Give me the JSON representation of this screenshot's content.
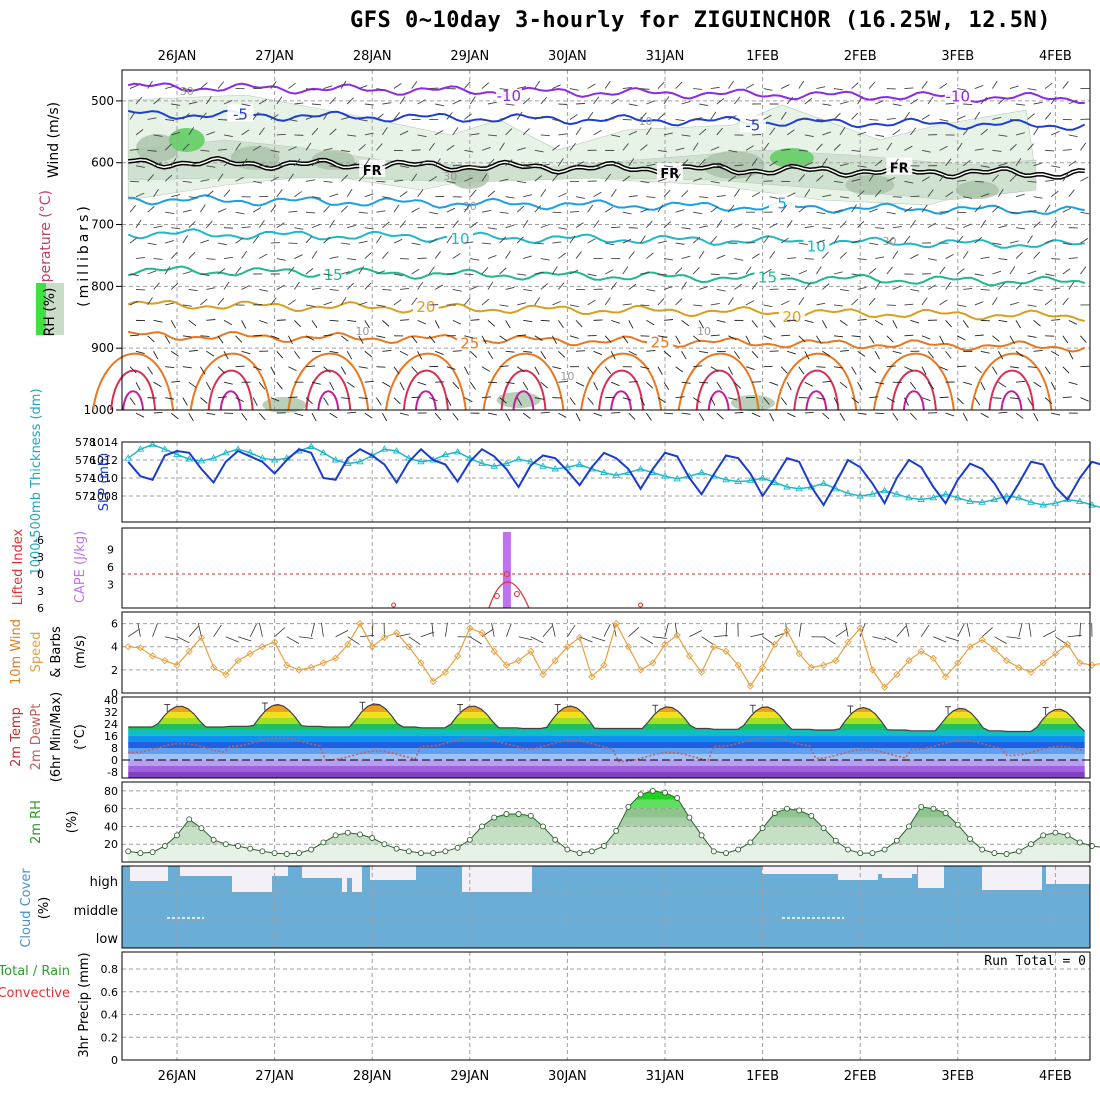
{
  "page": {
    "title": "GFS 0~10day 3-hourly for ZIGUINCHOR (16.25W, 12.5N)"
  },
  "colors": {
    "frame": "#000000",
    "grid": "#a0a0a0",
    "slp": "#1a3ccc",
    "thickness": "#20b8c8",
    "wind10m": "#e8a040",
    "barb": "#333333",
    "rh2m": "#2a9a2a",
    "cloud": "#6aadd6",
    "cape": "#c070f0",
    "lifted": "#e03030"
  },
  "chart_data": [
    {
      "type": "line",
      "panel": "profile",
      "ylabels": [
        "Wind (m/s)",
        "Temperature (°C)",
        "RH (%)",
        "(millibars)"
      ],
      "yticks": [
        500,
        600,
        700,
        800,
        900,
        1000
      ],
      "ylim": [
        450,
        1000
      ],
      "xlabels_top": [
        "26JAN",
        "27JAN",
        "28JAN",
        "29JAN",
        "30JAN",
        "31JAN",
        "1FEB",
        "2FEB",
        "3FEB",
        "4FEB"
      ],
      "xlabels_bottom": [
        "26JAN",
        "27JAN",
        "28JAN",
        "29JAN",
        "30JAN",
        "31JAN",
        "1FEB",
        "2FEB",
        "3FEB",
        "4FEB"
      ],
      "isotherms": [
        {
          "label": "-10",
          "level": 478,
          "color": "#8a2be2",
          "label_positions": [
            [
              3.9,
              "-10"
            ],
            [
              8.5,
              "-10"
            ]
          ]
        },
        {
          "label": "-5",
          "level": 522,
          "color": "#1f3fd0",
          "label_positions": [
            [
              1.15,
              "-5"
            ],
            [
              6.4,
              "-5"
            ]
          ]
        },
        {
          "label": "FR",
          "level": 600,
          "color": "#000000",
          "label_positions": [
            [
              2.5,
              "FR"
            ],
            [
              5.55,
              "FR"
            ],
            [
              7.9,
              "FR"
            ]
          ]
        },
        {
          "label": "5",
          "level": 660,
          "color": "#1ea0e0",
          "label_positions": [
            [
              6.7,
              "5"
            ]
          ]
        },
        {
          "label": "10",
          "level": 715,
          "color": "#20b8c8",
          "label_positions": [
            [
              3.4,
              "10"
            ],
            [
              7.05,
              "10"
            ]
          ]
        },
        {
          "label": "15",
          "level": 775,
          "color": "#20b890",
          "label_positions": [
            [
              2.1,
              "15"
            ],
            [
              6.55,
              "15"
            ]
          ]
        },
        {
          "label": "20",
          "level": 830,
          "color": "#d8a020",
          "label_positions": [
            [
              3.05,
              "20"
            ],
            [
              6.8,
              "20"
            ]
          ]
        },
        {
          "label": "25",
          "level": 880,
          "color": "#e87820",
          "label_positions": [
            [
              3.5,
              "25"
            ],
            [
              5.45,
              "25"
            ]
          ]
        }
      ],
      "rh_contour_labels": [
        "30",
        "10",
        "30",
        "30",
        "10",
        "10",
        "30",
        "10"
      ]
    },
    {
      "type": "line",
      "panel": "slp_thickness",
      "ylabel_left": "1000-500mb Thickness (dm)",
      "ylabel_right": "SLP (mb)",
      "left_ticks": [
        578,
        576,
        574,
        572
      ],
      "right_ticks": [
        1014,
        1012,
        1010,
        1008
      ],
      "slp_values": [
        1011.8,
        1010.2,
        1009.8,
        1012.5,
        1013.0,
        1012.8,
        1011.0,
        1009.5,
        1011.8,
        1013.0,
        1012.4,
        1011.8,
        1010.5,
        1012.0,
        1013.2,
        1012.8,
        1010.0,
        1009.8,
        1012.2,
        1013.2,
        1012.5,
        1011.5,
        1009.5,
        1011.8,
        1013.2,
        1012.0,
        1011.5,
        1009.6,
        1011.8,
        1013.2,
        1012.4,
        1011.0,
        1009.0,
        1011.4,
        1012.5,
        1012.2,
        1010.8,
        1009.2,
        1011.2,
        1012.8,
        1012.2,
        1011.0,
        1008.8,
        1011.0,
        1012.8,
        1012.4,
        1010.0,
        1008.2,
        1010.4,
        1012.5,
        1012.2,
        1010.5,
        1008.0,
        1010.0,
        1012.2,
        1011.8,
        1009.0,
        1007.0,
        1009.4,
        1012.0,
        1011.2,
        1009.4,
        1007.2,
        1010.0,
        1012.0,
        1011.2,
        1009.0,
        1007.2,
        1009.8,
        1011.6,
        1011.0,
        1009.4,
        1007.2,
        1009.4,
        1011.8,
        1011.5,
        1009.0,
        1007.6,
        1010.0,
        1011.8,
        1011.4
      ],
      "thickness_values": [
        576.2,
        577.2,
        577.7,
        577.2,
        576.6,
        576.1,
        575.9,
        576.2,
        576.8,
        577.2,
        576.8,
        576.2,
        576.0,
        576.2,
        577.0,
        577.5,
        576.8,
        576.0,
        575.6,
        575.8,
        576.5,
        577.2,
        577.0,
        576.2,
        575.8,
        576.0,
        576.6,
        576.9,
        576.2,
        575.6,
        575.3,
        575.6,
        576.1,
        575.8,
        575.3,
        575.0,
        575.2,
        575.5,
        575.0,
        574.6,
        574.3,
        574.6,
        575.0,
        574.6,
        574.2,
        573.9,
        574.2,
        574.6,
        574.2,
        573.8,
        573.6,
        573.7,
        574.0,
        573.5,
        573.0,
        572.8,
        573.0,
        573.4,
        572.8,
        572.3,
        572.0,
        572.2,
        572.6,
        572.2,
        571.8,
        571.6,
        571.8,
        572.2,
        571.8,
        571.4,
        571.3,
        571.6,
        572.0,
        571.8,
        571.3,
        571.0,
        571.2,
        571.6,
        571.4,
        571.0,
        570.6
      ]
    },
    {
      "type": "bar",
      "panel": "cape_lifted",
      "ylabel_left": "Lifted Index",
      "ylabel_right": "CAPE (J/kg)",
      "left_ticks": [
        "-6",
        "-3",
        "0",
        "3",
        "6"
      ],
      "right_ticks": [
        "9",
        "6",
        "3"
      ],
      "cape_bar": {
        "day": 3.88,
        "value": 12
      },
      "lifted_index_reference": 0
    },
    {
      "type": "line",
      "panel": "wind10m",
      "ylabel": "10m Wind Speed & Barbs (m/s)",
      "yticks": [
        0,
        2,
        4,
        6
      ],
      "ylim": [
        0,
        7
      ],
      "values": [
        4.0,
        3.9,
        3.2,
        2.8,
        2.4,
        3.6,
        4.8,
        2.2,
        1.6,
        2.8,
        3.4,
        4.0,
        4.4,
        2.4,
        2.0,
        2.2,
        2.6,
        3.0,
        4.2,
        6.0,
        4.0,
        4.8,
        5.2,
        4.0,
        2.6,
        1.0,
        1.8,
        3.2,
        5.6,
        5.2,
        3.6,
        2.4,
        2.8,
        3.6,
        1.6,
        2.8,
        4.0,
        4.8,
        1.4,
        2.4,
        6.0,
        4.0,
        2.0,
        2.6,
        4.2,
        5.0,
        3.2,
        1.8,
        4.0,
        3.6,
        2.4,
        0.6,
        2.2,
        4.2,
        5.4,
        3.4,
        2.2,
        2.4,
        2.8,
        4.4,
        5.6,
        2.0,
        0.5,
        1.6,
        2.8,
        3.6,
        3.0,
        1.4,
        2.6,
        4.0,
        4.6,
        3.8,
        2.8,
        2.2,
        1.8,
        2.6,
        3.4,
        4.2,
        2.6,
        2.4,
        2.6
      ]
    },
    {
      "type": "line",
      "panel": "temp_dewpt",
      "ylabel": "2m Temp 2m DewPt (6hr Min/Max) (°C)",
      "yticks": [
        40,
        32,
        24,
        16,
        8,
        0,
        -8
      ],
      "ylim": [
        -12,
        42
      ],
      "temp_max_day": [
        36,
        37,
        37.5,
        36,
        36,
        35.5,
        35.5,
        35,
        34.5,
        34
      ],
      "temp_min_day": [
        22,
        22.5,
        22,
        21.5,
        21,
        21,
        20.5,
        20,
        19.5,
        19
      ],
      "dewpt_values": [
        8,
        12,
        3,
        12,
        10,
        2,
        12,
        4,
        10,
        6
      ]
    },
    {
      "type": "area",
      "panel": "rh2m",
      "ylabel": "2m RH (%)",
      "yticks": [
        20,
        40,
        60,
        80
      ],
      "ylim": [
        0,
        90
      ],
      "values": [
        12,
        10,
        11,
        18,
        30,
        48,
        38,
        25,
        20,
        18,
        15,
        12,
        10,
        9,
        10,
        14,
        22,
        30,
        33,
        31,
        27,
        20,
        15,
        12,
        10,
        10,
        12,
        16,
        25,
        40,
        50,
        54,
        54,
        52,
        40,
        25,
        14,
        10,
        12,
        18,
        35,
        62,
        76,
        80,
        78,
        72,
        50,
        30,
        12,
        10,
        14,
        22,
        38,
        55,
        60,
        58,
        52,
        38,
        24,
        14,
        10,
        10,
        14,
        24,
        40,
        62,
        60,
        55,
        42,
        26,
        14,
        10,
        9,
        12,
        20,
        30,
        33,
        30,
        22,
        18,
        16
      ]
    },
    {
      "type": "bar",
      "panel": "cloud_cover",
      "ylabel": "Cloud Cover (%)",
      "ytick_labels": [
        "high",
        "middle",
        "low"
      ]
    },
    {
      "type": "bar",
      "panel": "precip",
      "ylabel_left": [
        "Total / Rain",
        "Convective"
      ],
      "ylabel": "3hr Precip (mm)",
      "yticks": [
        0,
        0.2,
        0.4,
        0.6,
        0.8
      ],
      "ylim": [
        0,
        0.95
      ],
      "run_total": "Run Total = 0",
      "values": []
    }
  ]
}
